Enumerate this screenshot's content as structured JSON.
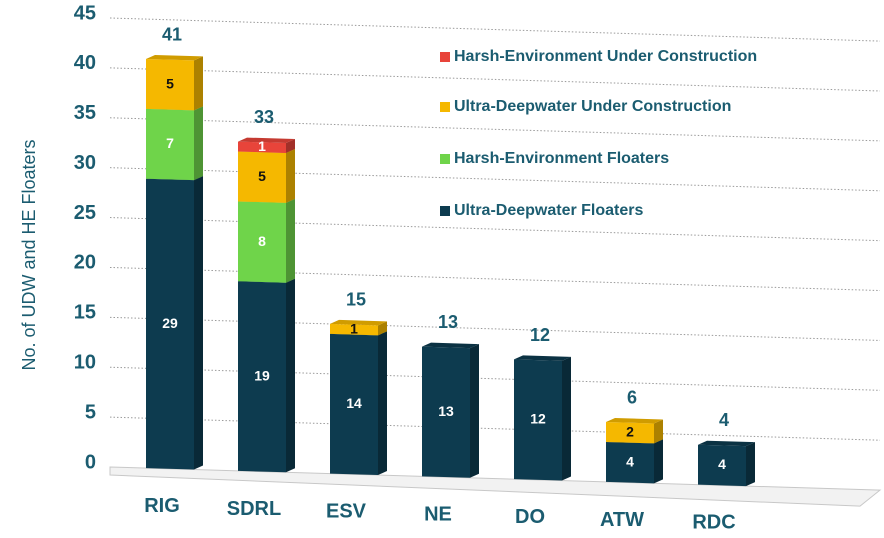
{
  "chart_data": {
    "type": "bar",
    "stacked": true,
    "y_label": "No. of UDW and HE Floaters",
    "categories": [
      "RIG",
      "SDRL",
      "ESV",
      "NE",
      "DO",
      "ATW",
      "RDC"
    ],
    "series": [
      {
        "name": "Ultra-Deepwater Floaters",
        "color": "#0d3b4f",
        "values": [
          29,
          19,
          14,
          13,
          12,
          4,
          4
        ]
      },
      {
        "name": "Harsh-Environment Floaters",
        "color": "#6fd44a",
        "values": [
          7,
          8,
          null,
          null,
          null,
          null,
          null
        ]
      },
      {
        "name": "Ultra-Deepwater Under Construction",
        "color": "#f5b800",
        "values": [
          5,
          5,
          1,
          null,
          null,
          2,
          null
        ]
      },
      {
        "name": "Harsh-Environment Under Construction",
        "color": "#e8443a",
        "values": [
          null,
          1,
          null,
          null,
          null,
          null,
          null
        ]
      }
    ],
    "totals": [
      41,
      33,
      15,
      13,
      12,
      6,
      4
    ],
    "ylim": [
      0,
      45
    ],
    "yticks": [
      0,
      5,
      10,
      15,
      20,
      25,
      30,
      35,
      40,
      45
    ],
    "grid": true,
    "legend": "top-right"
  }
}
